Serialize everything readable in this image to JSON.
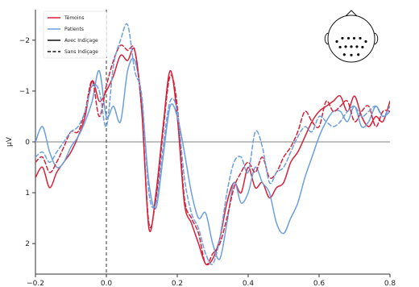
{
  "chart_data": {
    "type": "line",
    "title": "",
    "xlabel": "",
    "ylabel": "µV",
    "xlim": [
      -0.2,
      0.8
    ],
    "ylim": [
      2.6,
      -2.6
    ],
    "y_inverted": true,
    "x_ticks": [
      -0.2,
      0.0,
      0.2,
      0.4,
      0.6,
      0.8
    ],
    "x_tick_labels": [
      "−0.2",
      "0.0",
      "0.2",
      "0.4",
      "0.6",
      "0.8"
    ],
    "y_ticks": [
      -2,
      -1,
      0,
      1,
      2
    ],
    "y_tick_labels": [
      "−2",
      "−1",
      "0",
      "1",
      "2"
    ],
    "grid": false,
    "zero_line": true,
    "stimulus_onset_marker": 0.0,
    "legend_placement": "top-left",
    "legend": [
      {
        "label": "Témoins",
        "color": "#d62038",
        "style": "solid"
      },
      {
        "label": "Patients",
        "color": "#6a9fe0",
        "style": "solid"
      },
      {
        "label": "Avec Indiçage",
        "color": "#111111",
        "style": "solid"
      },
      {
        "label": "Sans Indiçage",
        "color": "#111111",
        "style": "dashed"
      }
    ],
    "x": [
      -0.2,
      -0.18,
      -0.16,
      -0.14,
      -0.12,
      -0.1,
      -0.08,
      -0.06,
      -0.04,
      -0.02,
      0.0,
      0.02,
      0.04,
      0.06,
      0.08,
      0.1,
      0.12,
      0.14,
      0.16,
      0.18,
      0.2,
      0.22,
      0.24,
      0.26,
      0.28,
      0.3,
      0.32,
      0.34,
      0.36,
      0.38,
      0.4,
      0.42,
      0.44,
      0.46,
      0.48,
      0.5,
      0.52,
      0.54,
      0.56,
      0.58,
      0.6,
      0.62,
      0.64,
      0.66,
      0.68,
      0.7,
      0.72,
      0.74,
      0.76,
      0.78,
      0.8
    ],
    "series": [
      {
        "name": "Témoins",
        "condition": "Avec Indiçage",
        "color": "#d62038",
        "dash": false,
        "values": [
          0.7,
          0.5,
          0.9,
          0.6,
          0.4,
          0.2,
          -0.1,
          -0.5,
          -1.2,
          -0.8,
          -1.0,
          -1.3,
          -1.7,
          -1.6,
          -1.8,
          -0.6,
          1.7,
          1.0,
          -0.3,
          -1.4,
          -0.5,
          1.2,
          1.6,
          2.0,
          2.4,
          2.3,
          1.9,
          1.2,
          0.8,
          1.0,
          0.5,
          0.9,
          0.8,
          1.1,
          0.9,
          0.8,
          0.4,
          0.2,
          -0.1,
          -0.4,
          -0.6,
          -0.7,
          -0.8,
          -0.9,
          -0.6,
          -0.9,
          -0.5,
          -0.3,
          -0.5,
          -0.4,
          -0.8
        ]
      },
      {
        "name": "Patients",
        "condition": "Avec Indiçage",
        "color": "#6a9fe0",
        "dash": false,
        "values": [
          0.0,
          -0.3,
          0.2,
          0.5,
          0.4,
          0.1,
          -0.1,
          -0.4,
          -0.8,
          -1.4,
          -0.5,
          -0.7,
          -0.4,
          -1.4,
          -1.6,
          -0.8,
          0.8,
          1.3,
          0.3,
          -0.7,
          -0.5,
          0.2,
          1.0,
          1.5,
          1.4,
          2.0,
          2.3,
          1.6,
          0.8,
          1.2,
          1.0,
          0.5,
          0.8,
          1.0,
          1.6,
          1.8,
          1.5,
          1.2,
          0.7,
          0.3,
          -0.1,
          -0.4,
          -0.6,
          -0.6,
          -0.4,
          -0.7,
          -0.3,
          -0.4,
          -0.7,
          -0.5,
          -0.6
        ]
      },
      {
        "name": "Témoins",
        "condition": "Sans Indiçage",
        "color": "#d62038",
        "dash": true,
        "values": [
          0.4,
          0.3,
          0.6,
          0.4,
          0.1,
          -0.2,
          -0.2,
          -0.6,
          -1.2,
          -0.5,
          -1.1,
          -1.6,
          -1.9,
          -1.8,
          -1.8,
          -0.6,
          1.6,
          1.1,
          -0.2,
          -1.3,
          -0.7,
          1.1,
          1.5,
          1.8,
          2.4,
          2.2,
          2.0,
          1.5,
          0.9,
          0.6,
          0.4,
          0.6,
          0.3,
          0.7,
          0.6,
          0.3,
          0.1,
          -0.2,
          -0.6,
          -0.4,
          -0.3,
          -0.8,
          -0.6,
          -0.7,
          -0.8,
          -0.4,
          -0.6,
          -0.7,
          -0.3,
          -0.6,
          -0.6
        ]
      },
      {
        "name": "Patients",
        "condition": "Sans Indiçage",
        "color": "#6a9fe0",
        "dash": true,
        "values": [
          0.3,
          0.2,
          0.4,
          0.2,
          0.0,
          -0.2,
          -0.3,
          -0.6,
          -1.1,
          -1.0,
          -0.3,
          -1.5,
          -2.0,
          -2.3,
          -1.4,
          -0.9,
          1.0,
          1.2,
          0.1,
          -0.8,
          -0.6,
          0.7,
          1.4,
          1.7,
          2.2,
          2.4,
          1.9,
          1.0,
          0.4,
          0.3,
          0.6,
          -0.2,
          0.1,
          0.8,
          0.6,
          0.5,
          0.2,
          -0.1,
          -0.3,
          -0.2,
          -0.5,
          -0.4,
          -0.3,
          -0.4,
          -0.6,
          -0.7,
          -0.5,
          -0.6,
          -0.7,
          -0.5,
          -0.7
        ]
      }
    ],
    "inset": {
      "type": "electrode-head-map",
      "electrodes": [
        [
          -0.62,
          0.12
        ],
        [
          -0.38,
          -0.02
        ],
        [
          -0.12,
          -0.02
        ],
        [
          0.12,
          -0.02
        ],
        [
          0.38,
          -0.02
        ],
        [
          0.62,
          0.12
        ],
        [
          -0.48,
          0.36
        ],
        [
          -0.24,
          0.34
        ],
        [
          0.0,
          0.34
        ],
        [
          0.24,
          0.34
        ],
        [
          0.48,
          0.36
        ],
        [
          -0.3,
          0.68
        ],
        [
          0.0,
          0.7
        ],
        [
          0.3,
          0.68
        ]
      ]
    }
  }
}
